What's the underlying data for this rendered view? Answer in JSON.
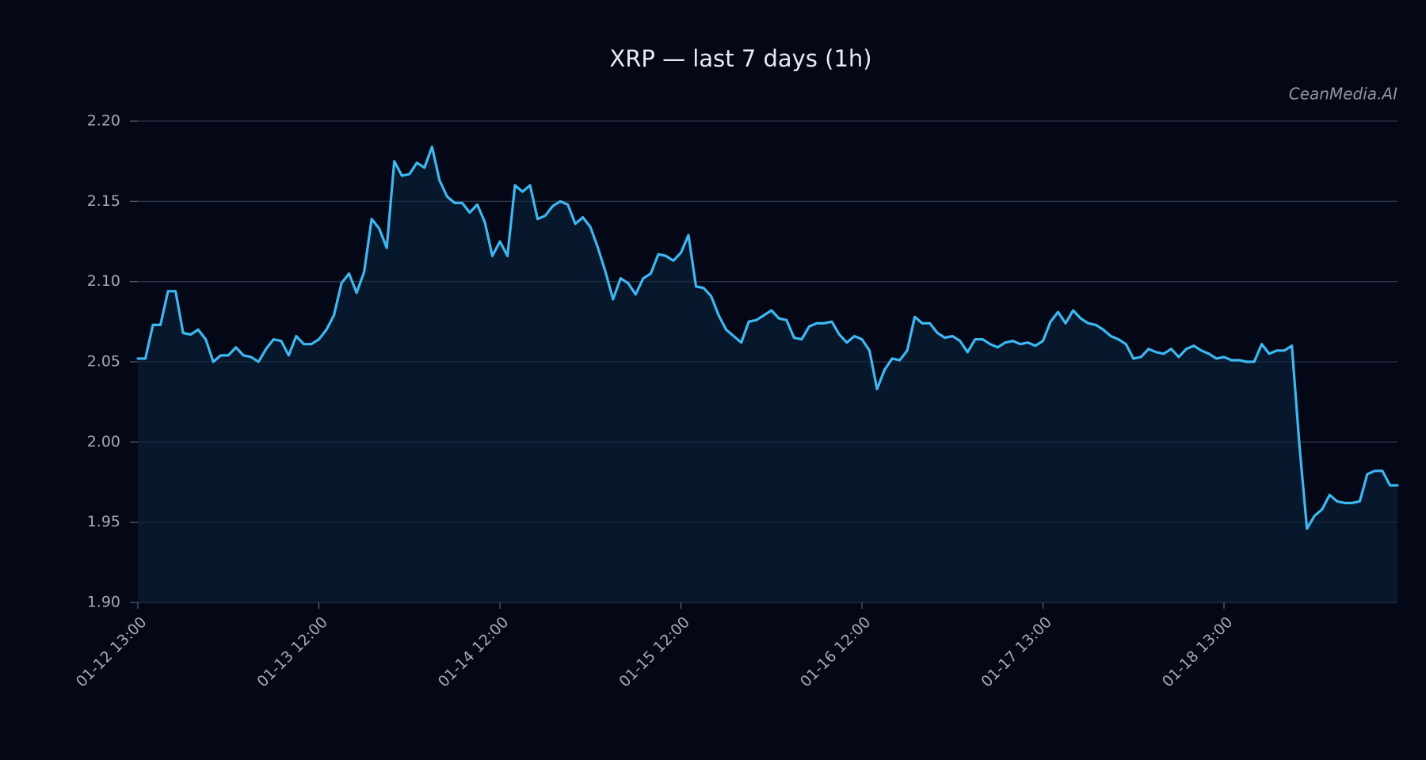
{
  "chart_data": {
    "type": "line",
    "title": "XRP — last 7 days (1h)",
    "watermark": "CeanMedia.AI",
    "color": "#3db8f2",
    "area": true,
    "grid": true,
    "ylim": [
      1.9,
      2.2
    ],
    "yticks": [
      {
        "value": 1.9,
        "label": "1.90"
      },
      1.95,
      {
        "value": 2.0,
        "label": "2.00"
      },
      2.05,
      {
        "value": 2.1,
        "label": "2.10"
      },
      2.15,
      {
        "value": 2.2,
        "label": "2.20"
      }
    ],
    "categories": [
      "01-12 13:00",
      null,
      null,
      null,
      null,
      null,
      null,
      null,
      null,
      null,
      null,
      null,
      null,
      null,
      null,
      null,
      null,
      null,
      null,
      null,
      null,
      null,
      null,
      null,
      "01-13 12:00",
      null,
      null,
      null,
      null,
      null,
      null,
      null,
      null,
      null,
      null,
      null,
      null,
      null,
      null,
      null,
      null,
      null,
      null,
      null,
      null,
      null,
      null,
      null,
      "01-14 12:00",
      null,
      null,
      null,
      null,
      null,
      null,
      null,
      null,
      null,
      null,
      null,
      null,
      null,
      null,
      null,
      null,
      null,
      null,
      null,
      null,
      null,
      null,
      null,
      "01-15 12:00",
      null,
      null,
      null,
      null,
      null,
      null,
      null,
      null,
      null,
      null,
      null,
      null,
      null,
      null,
      null,
      null,
      null,
      null,
      null,
      null,
      null,
      null,
      null,
      "01-16 12:00",
      null,
      null,
      null,
      null,
      null,
      null,
      null,
      null,
      null,
      null,
      null,
      null,
      null,
      null,
      null,
      null,
      null,
      null,
      null,
      null,
      null,
      null,
      null,
      "01-17 13:00",
      null,
      null,
      null,
      null,
      null,
      null,
      null,
      null,
      null,
      null,
      null,
      null,
      null,
      null,
      null,
      null,
      null,
      null,
      null,
      null,
      null,
      null,
      null,
      "01-18 13:00",
      null,
      null,
      null,
      null,
      null,
      null,
      null,
      null,
      null,
      null,
      null,
      null,
      null,
      null,
      null,
      null,
      null,
      null,
      null,
      null,
      null,
      null,
      null
    ],
    "values": [
      2.052,
      2.052,
      2.073,
      2.073,
      2.094,
      2.094,
      2.068,
      2.067,
      2.07,
      2.064,
      2.05,
      2.054,
      2.054,
      2.059,
      2.054,
      2.053,
      2.05,
      2.058,
      2.064,
      2.063,
      2.054,
      2.066,
      2.061,
      2.061,
      2.064,
      2.07,
      2.079,
      2.099,
      2.105,
      2.093,
      2.106,
      2.139,
      2.133,
      2.121,
      2.175,
      2.166,
      2.167,
      2.174,
      2.171,
      2.184,
      2.163,
      2.153,
      2.149,
      2.149,
      2.143,
      2.148,
      2.137,
      2.116,
      2.125,
      2.116,
      2.16,
      2.156,
      2.16,
      2.139,
      2.141,
      2.147,
      2.15,
      2.148,
      2.136,
      2.14,
      2.134,
      2.121,
      2.106,
      2.089,
      2.102,
      2.099,
      2.092,
      2.102,
      2.105,
      2.117,
      2.116,
      2.113,
      2.118,
      2.129,
      2.097,
      2.096,
      2.091,
      2.079,
      2.07,
      2.066,
      2.062,
      2.075,
      2.076,
      2.079,
      2.082,
      2.077,
      2.076,
      2.065,
      2.064,
      2.072,
      2.074,
      2.074,
      2.075,
      2.067,
      2.062,
      2.066,
      2.064,
      2.057,
      2.033,
      2.045,
      2.052,
      2.051,
      2.057,
      2.078,
      2.074,
      2.074,
      2.068,
      2.065,
      2.066,
      2.063,
      2.056,
      2.064,
      2.064,
      2.061,
      2.059,
      2.062,
      2.063,
      2.061,
      2.062,
      2.06,
      2.063,
      2.075,
      2.081,
      2.074,
      2.082,
      2.077,
      2.074,
      2.073,
      2.07,
      2.066,
      2.064,
      2.061,
      2.052,
      2.053,
      2.058,
      2.056,
      2.055,
      2.058,
      2.053,
      2.058,
      2.06,
      2.057,
      2.055,
      2.052,
      2.053,
      2.051,
      2.051,
      2.05,
      2.05,
      2.061,
      2.055,
      2.057,
      2.057,
      2.06,
      1.998,
      1.946,
      1.954,
      1.958,
      1.967,
      1.963,
      1.962,
      1.962,
      1.963,
      1.98,
      1.982,
      1.982,
      1.973,
      1.973
    ]
  }
}
